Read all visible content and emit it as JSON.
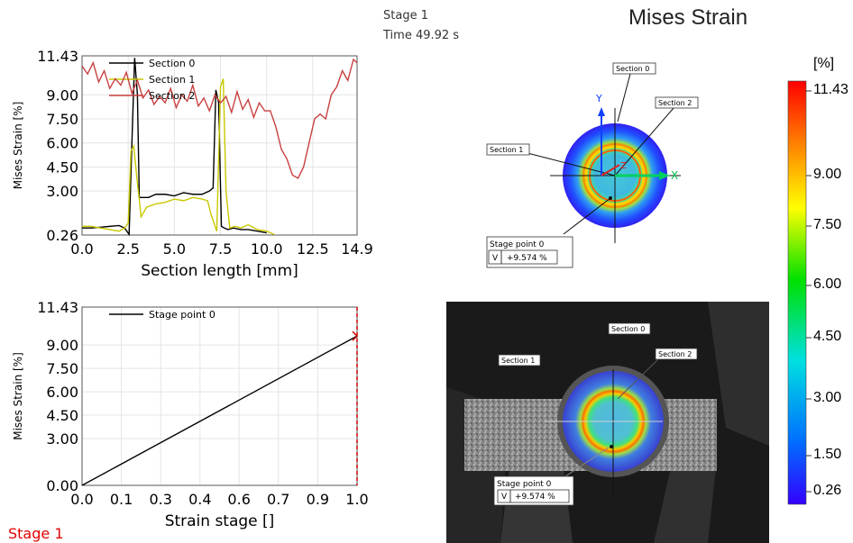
{
  "header": {
    "stage_label": "Stage 1",
    "time_label": "Time  49.92 s",
    "title": "Mises Strain"
  },
  "footer": {
    "stage_label": "Stage 1"
  },
  "colorbar": {
    "unit": "[%]",
    "ticks": [
      "11.43",
      "9.00",
      "7.50",
      "6.00",
      "4.50",
      "3.00",
      "1.50",
      "0.26"
    ],
    "colors": [
      "#ff0000",
      "#ff7a00",
      "#ffff00",
      "#00e000",
      "#00e0e0",
      "#0070ff",
      "#3300ff"
    ]
  },
  "images": {
    "top": {
      "section_labels": [
        "Section 0",
        "Section 1",
        "Section 2"
      ],
      "axis_y": "Y",
      "axis_x": "X",
      "axis_z": "Z",
      "point_label": "Stage point 0",
      "point_key": "V",
      "point_value": "+9.574 %"
    },
    "bottom": {
      "section_labels": [
        "Section 0",
        "Section 1",
        "Section 2"
      ],
      "point_label": "Stage point 0",
      "point_key": "V",
      "point_value": "+9.574 %"
    }
  },
  "chart_data": [
    {
      "type": "line",
      "xlabel": "Section length [mm]",
      "ylabel": "Mises Strain [%]",
      "xlim": [
        0,
        14.9
      ],
      "ylim": [
        0.26,
        11.43
      ],
      "xticks": [
        "0.0",
        "2.5",
        "5.0",
        "7.5",
        "10.0",
        "12.5",
        "14.9"
      ],
      "xtick_values": [
        0,
        2.5,
        5.0,
        7.5,
        10.0,
        12.5,
        14.9
      ],
      "yticks": [
        "11.43",
        "9.00",
        "7.50",
        "6.00",
        "4.50",
        "3.00",
        "0.26"
      ],
      "ytick_values": [
        11.43,
        9.0,
        7.5,
        6.0,
        4.5,
        3.0,
        0.26
      ],
      "legend": "top-left",
      "series": [
        {
          "name": "Section 0",
          "color": "#000000",
          "x": [
            0,
            0.5,
            1.0,
            1.5,
            2.0,
            2.3,
            2.55,
            2.7,
            2.85,
            3.0,
            3.1,
            3.3,
            3.6,
            4.0,
            4.5,
            5.0,
            5.5,
            6.0,
            6.5,
            6.9,
            7.1,
            7.25,
            7.4,
            7.55,
            7.7,
            7.9,
            8.2,
            8.6,
            9.0,
            9.5,
            10.0
          ],
          "y": [
            0.7,
            0.7,
            0.75,
            0.8,
            0.85,
            0.7,
            0.3,
            6.0,
            11.3,
            9.0,
            2.6,
            2.6,
            2.6,
            2.8,
            2.8,
            2.7,
            2.9,
            2.8,
            2.8,
            3.0,
            3.2,
            9.3,
            8.5,
            0.8,
            0.7,
            0.6,
            0.7,
            0.6,
            0.6,
            0.5,
            0.4
          ]
        },
        {
          "name": "Section 1",
          "color": "#c8c800",
          "x": [
            0,
            0.5,
            1.0,
            1.5,
            2.0,
            2.3,
            2.5,
            2.65,
            2.8,
            3.0,
            3.2,
            3.5,
            4.0,
            4.5,
            5.0,
            5.5,
            6.0,
            6.5,
            6.8,
            7.0,
            7.3,
            7.5,
            7.65,
            7.8,
            8.0,
            8.3,
            8.6,
            9.0,
            9.5,
            10.0,
            10.4
          ],
          "y": [
            0.8,
            0.8,
            0.7,
            0.6,
            0.5,
            0.7,
            1.0,
            5.5,
            5.8,
            3.5,
            1.4,
            2.0,
            2.2,
            2.3,
            2.5,
            2.4,
            2.6,
            2.5,
            2.4,
            1.5,
            0.5,
            9.5,
            10.0,
            3.0,
            0.7,
            0.8,
            0.7,
            0.9,
            0.6,
            0.5,
            0.3
          ]
        },
        {
          "name": "Section 2",
          "color": "#c84040",
          "x": [
            0,
            0.3,
            0.6,
            0.9,
            1.2,
            1.5,
            1.8,
            2.1,
            2.4,
            2.7,
            3.0,
            3.3,
            3.6,
            3.9,
            4.2,
            4.5,
            4.8,
            5.1,
            5.4,
            5.7,
            6.0,
            6.3,
            6.6,
            6.9,
            7.2,
            7.5,
            7.8,
            8.1,
            8.4,
            8.7,
            9.0,
            9.3,
            9.6,
            9.9,
            10.2,
            10.5,
            10.8,
            11.1,
            11.4,
            11.7,
            12.0,
            12.3,
            12.6,
            12.9,
            13.2,
            13.5,
            13.8,
            14.1,
            14.4,
            14.7,
            14.9
          ],
          "y": [
            10.8,
            10.3,
            11.0,
            9.8,
            10.5,
            9.4,
            10.0,
            9.6,
            10.4,
            9.1,
            9.9,
            8.8,
            9.3,
            8.4,
            8.9,
            8.5,
            9.4,
            8.2,
            9.0,
            8.6,
            9.6,
            8.3,
            8.8,
            8.0,
            9.0,
            8.5,
            8.9,
            7.9,
            9.2,
            8.1,
            8.7,
            7.6,
            8.5,
            8.0,
            8.0,
            7.0,
            5.6,
            5.0,
            4.0,
            3.8,
            4.5,
            6.0,
            7.5,
            7.8,
            7.5,
            9.0,
            9.5,
            10.5,
            9.9,
            11.2,
            11.0
          ]
        }
      ]
    },
    {
      "type": "line",
      "xlabel": "Strain stage []",
      "ylabel": "Mises Strain [%]",
      "xlim": [
        0,
        1.0
      ],
      "ylim": [
        0,
        11.43
      ],
      "xticks": [
        "0.0",
        "0.1",
        "0.3",
        "0.4",
        "0.6",
        "0.7",
        "0.9",
        "1.0"
      ],
      "xtick_values": [
        0,
        0.143,
        0.286,
        0.429,
        0.571,
        0.714,
        0.857,
        1.0
      ],
      "yticks": [
        "11.43",
        "9.00",
        "7.50",
        "6.00",
        "4.50",
        "3.00",
        "0.00"
      ],
      "ytick_values": [
        11.43,
        9.0,
        7.5,
        6.0,
        4.5,
        3.0,
        0.0
      ],
      "legend": "top-left",
      "series": [
        {
          "name": "Stage point 0",
          "color": "#000000",
          "x": [
            0,
            1.0
          ],
          "y": [
            0,
            9.574
          ]
        }
      ],
      "marker_x": 1.0,
      "marker_color": "#cc0000"
    }
  ]
}
